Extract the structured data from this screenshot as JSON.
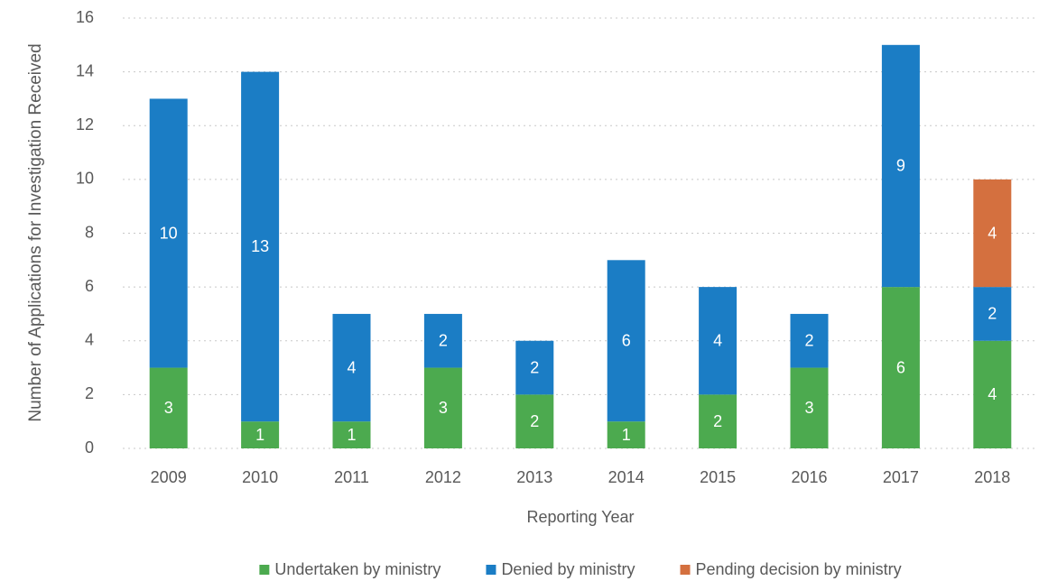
{
  "chart_data": {
    "type": "stacked-bar",
    "y_label": "Number of Applications for Investigation Received",
    "x_label": "Reporting Year",
    "categories": [
      "2009",
      "2010",
      "2011",
      "2012",
      "2013",
      "2014",
      "2015",
      "2016",
      "2017",
      "2018"
    ],
    "series": [
      {
        "name": "Undertaken by ministry",
        "color": "#4caa4f",
        "values": [
          3,
          1,
          1,
          3,
          2,
          1,
          2,
          3,
          6,
          4
        ]
      },
      {
        "name": "Denied by ministry",
        "color": "#1b7dc5",
        "values": [
          10,
          13,
          4,
          2,
          2,
          6,
          4,
          2,
          9,
          2
        ]
      },
      {
        "name": "Pending decision by ministry",
        "color": "#d4703f",
        "values": [
          null,
          null,
          null,
          null,
          null,
          null,
          null,
          null,
          null,
          4
        ]
      }
    ],
    "ylim": [
      0,
      16
    ],
    "yticks": [
      0,
      2,
      4,
      6,
      8,
      10,
      12,
      14,
      16
    ],
    "grid": true,
    "legend": "bottom"
  }
}
